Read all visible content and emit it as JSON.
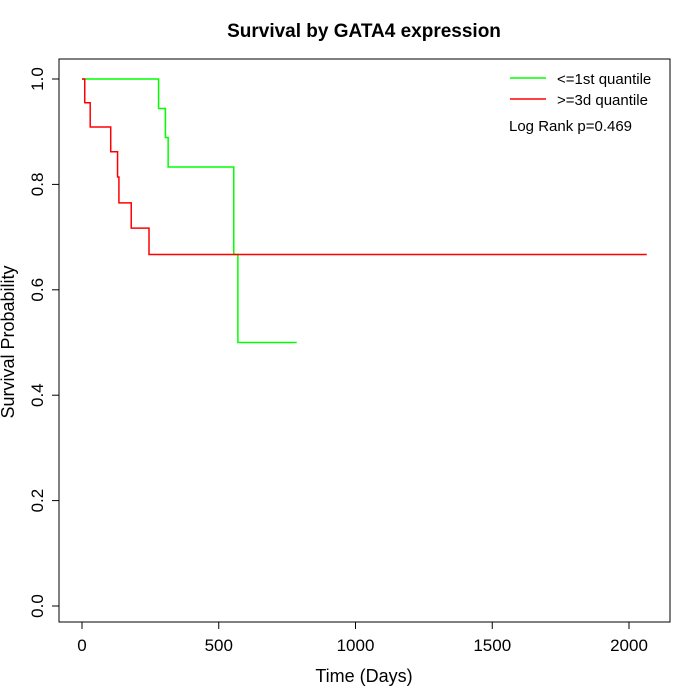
{
  "chart_data": {
    "type": "line",
    "title": "Survival by GATA4 expression",
    "xlabel": "Time (Days)",
    "ylabel": "Survival Probability",
    "xlim": [
      0,
      2070
    ],
    "ylim": [
      0,
      1
    ],
    "xticks": [
      0,
      500,
      1000,
      1500,
      2000
    ],
    "xtick_labels": [
      "0",
      "500",
      "1000",
      "1500",
      "2000"
    ],
    "yticks": [
      0,
      0.2,
      0.4,
      0.6,
      0.8,
      1.0
    ],
    "ytick_labels": [
      "0.0",
      "0.2",
      "0.4",
      "0.6",
      "0.8",
      "1.0"
    ],
    "grid": false,
    "legend_position": "top-right",
    "annotation": "Log Rank p=0.469",
    "series": [
      {
        "name": "<=1st quantile",
        "color": "#00ff00",
        "step_x": [
          0,
          280,
          305,
          315,
          555,
          570,
          785
        ],
        "step_y": [
          1.0,
          0.944,
          0.889,
          0.833,
          0.667,
          0.5,
          0.5
        ]
      },
      {
        "name": ">=3d quantile",
        "color": "#ff0000",
        "step_x": [
          0,
          10,
          30,
          105,
          130,
          135,
          180,
          245,
          2065
        ],
        "step_y": [
          1.0,
          0.955,
          0.909,
          0.862,
          0.814,
          0.765,
          0.717,
          0.667,
          0.667
        ]
      }
    ]
  }
}
